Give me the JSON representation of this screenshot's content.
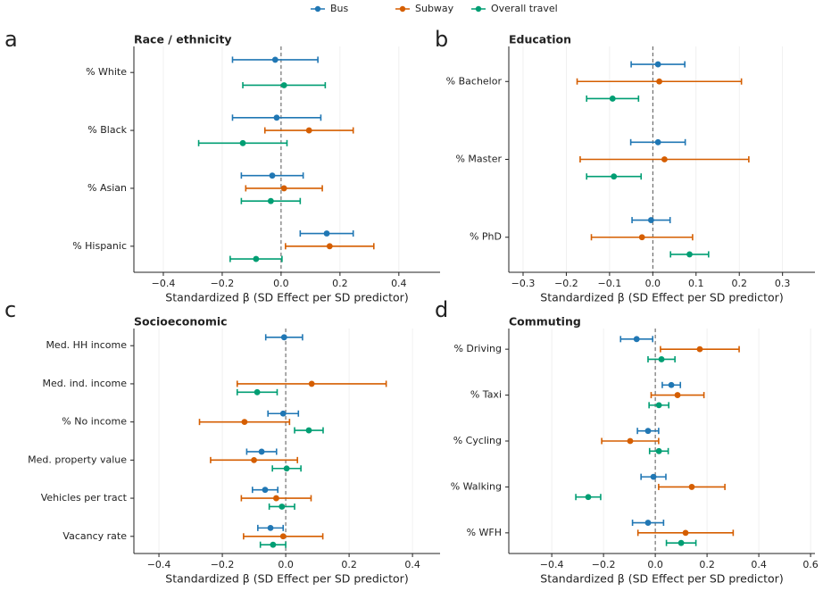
{
  "chart_data": [
    {
      "type": "errorbar",
      "panel_label": "a",
      "title": "Race / ethnicity",
      "categories": [
        "% White",
        "% Black",
        "% Asian",
        "% Hispanic"
      ],
      "series": [
        {
          "name": "Bus",
          "color": "#2077b4",
          "values": [
            -0.02,
            -0.015,
            -0.03,
            0.155
          ],
          "errors": [
            0.145,
            0.15,
            0.105,
            0.09
          ]
        },
        {
          "name": "Subway",
          "color": "#d55e00",
          "values": [
            null,
            0.095,
            0.01,
            0.165
          ],
          "errors": [
            null,
            0.15,
            0.13,
            0.15
          ]
        },
        {
          "name": "Overall travel",
          "color": "#009e73",
          "values": [
            0.01,
            -0.13,
            -0.035,
            -0.085
          ],
          "errors": [
            0.14,
            0.15,
            0.1,
            0.088
          ]
        }
      ],
      "xlabel": "Standardized β (SD Effect per SD predictor)",
      "xlim": [
        -0.5,
        0.54
      ],
      "xticks": [
        {
          "value": -0.4,
          "label": "−0.4"
        },
        {
          "value": -0.2,
          "label": "−0.2"
        },
        {
          "value": 0,
          "label": "0.0"
        },
        0.2,
        0.4
      ],
      "grid": true,
      "zero_line": true
    },
    {
      "type": "errorbar",
      "panel_label": "b",
      "title": "Education",
      "categories": [
        "% Bachelor",
        "% Master",
        "% PhD"
      ],
      "series": [
        {
          "color": "#2077b4",
          "values": [
            0.012,
            0.012,
            -0.004
          ],
          "errors": [
            0.062,
            0.063,
            0.044
          ]
        },
        {
          "color": "#d55e00",
          "values": [
            0.015,
            0.027,
            -0.025
          ],
          "errors": [
            0.19,
            0.195,
            0.117
          ]
        },
        {
          "color": "#009e73",
          "values": [
            -0.093,
            -0.09,
            0.085
          ],
          "errors": [
            0.06,
            0.063,
            0.044
          ]
        }
      ],
      "xlabel": "Standardized β (SD Effect per SD predictor)",
      "xlim": [
        -0.333,
        0.375
      ],
      "xticks": [
        {
          "value": -0.3,
          "label": "−0.3"
        },
        {
          "value": -0.2,
          "label": "−0.2"
        },
        {
          "value": -0.1,
          "label": "−0.1"
        },
        {
          "value": 0,
          "label": "0.0"
        },
        0.1,
        0.2,
        0.3
      ],
      "grid": true,
      "zero_line": true
    },
    {
      "type": "errorbar",
      "panel_label": "c",
      "title": "Socioeconomic",
      "categories": [
        "Med. HH income",
        "Med. ind. income",
        "% No income",
        "Med. property value",
        "Vehicles per tract",
        "Vacancy rate"
      ],
      "series": [
        {
          "color": "#2077b4",
          "values": [
            -0.005,
            null,
            -0.008,
            -0.076,
            -0.065,
            -0.048
          ],
          "errors": [
            0.058,
            null,
            0.048,
            0.047,
            0.04,
            0.04
          ]
        },
        {
          "color": "#d55e00",
          "values": [
            null,
            0.082,
            -0.13,
            -0.1,
            -0.03,
            -0.008
          ],
          "errors": [
            null,
            0.235,
            0.142,
            0.137,
            0.11,
            0.125
          ]
        },
        {
          "color": "#009e73",
          "values": [
            null,
            -0.09,
            0.073,
            0.003,
            -0.012,
            -0.04
          ],
          "errors": [
            null,
            0.063,
            0.045,
            0.045,
            0.04,
            0.04
          ]
        }
      ],
      "xlabel": "Standardized β (SD Effect per SD predictor)",
      "xlim": [
        -0.479,
        0.487
      ],
      "xticks": [
        {
          "value": -0.4,
          "label": "−0.4"
        },
        {
          "value": -0.2,
          "label": "−0.2"
        },
        {
          "value": 0,
          "label": "0.0"
        },
        0.2,
        0.4
      ],
      "grid": true,
      "zero_line": true
    },
    {
      "type": "errorbar",
      "panel_label": "d",
      "title": "Commuting",
      "categories": [
        "% Driving",
        "% Taxi",
        "% Cycling",
        "% Walking",
        "% WFH"
      ],
      "series": [
        {
          "color": "#2077b4",
          "values": [
            -0.072,
            0.062,
            -0.028,
            -0.007,
            -0.028
          ],
          "errors": [
            0.062,
            0.035,
            0.041,
            0.048,
            0.06
          ]
        },
        {
          "color": "#d55e00",
          "values": [
            0.172,
            0.086,
            -0.097,
            0.141,
            0.117
          ],
          "errors": [
            0.152,
            0.102,
            0.11,
            0.128,
            0.184
          ]
        },
        {
          "color": "#009e73",
          "values": [
            0.024,
            0.014,
            0.014,
            -0.259,
            0.1
          ],
          "errors": [
            0.052,
            0.038,
            0.036,
            0.048,
            0.057
          ]
        }
      ],
      "xlabel": "Standardized β (SD Effect per SD predictor)",
      "xlim": [
        -0.566,
        0.617
      ],
      "xticks": [
        {
          "value": -0.4,
          "label": "−0.4"
        },
        {
          "value": -0.2,
          "label": "−0.2"
        },
        {
          "value": 0,
          "label": "0.0"
        },
        0.2,
        0.4,
        0.6
      ],
      "grid": true,
      "zero_line": true
    }
  ]
}
